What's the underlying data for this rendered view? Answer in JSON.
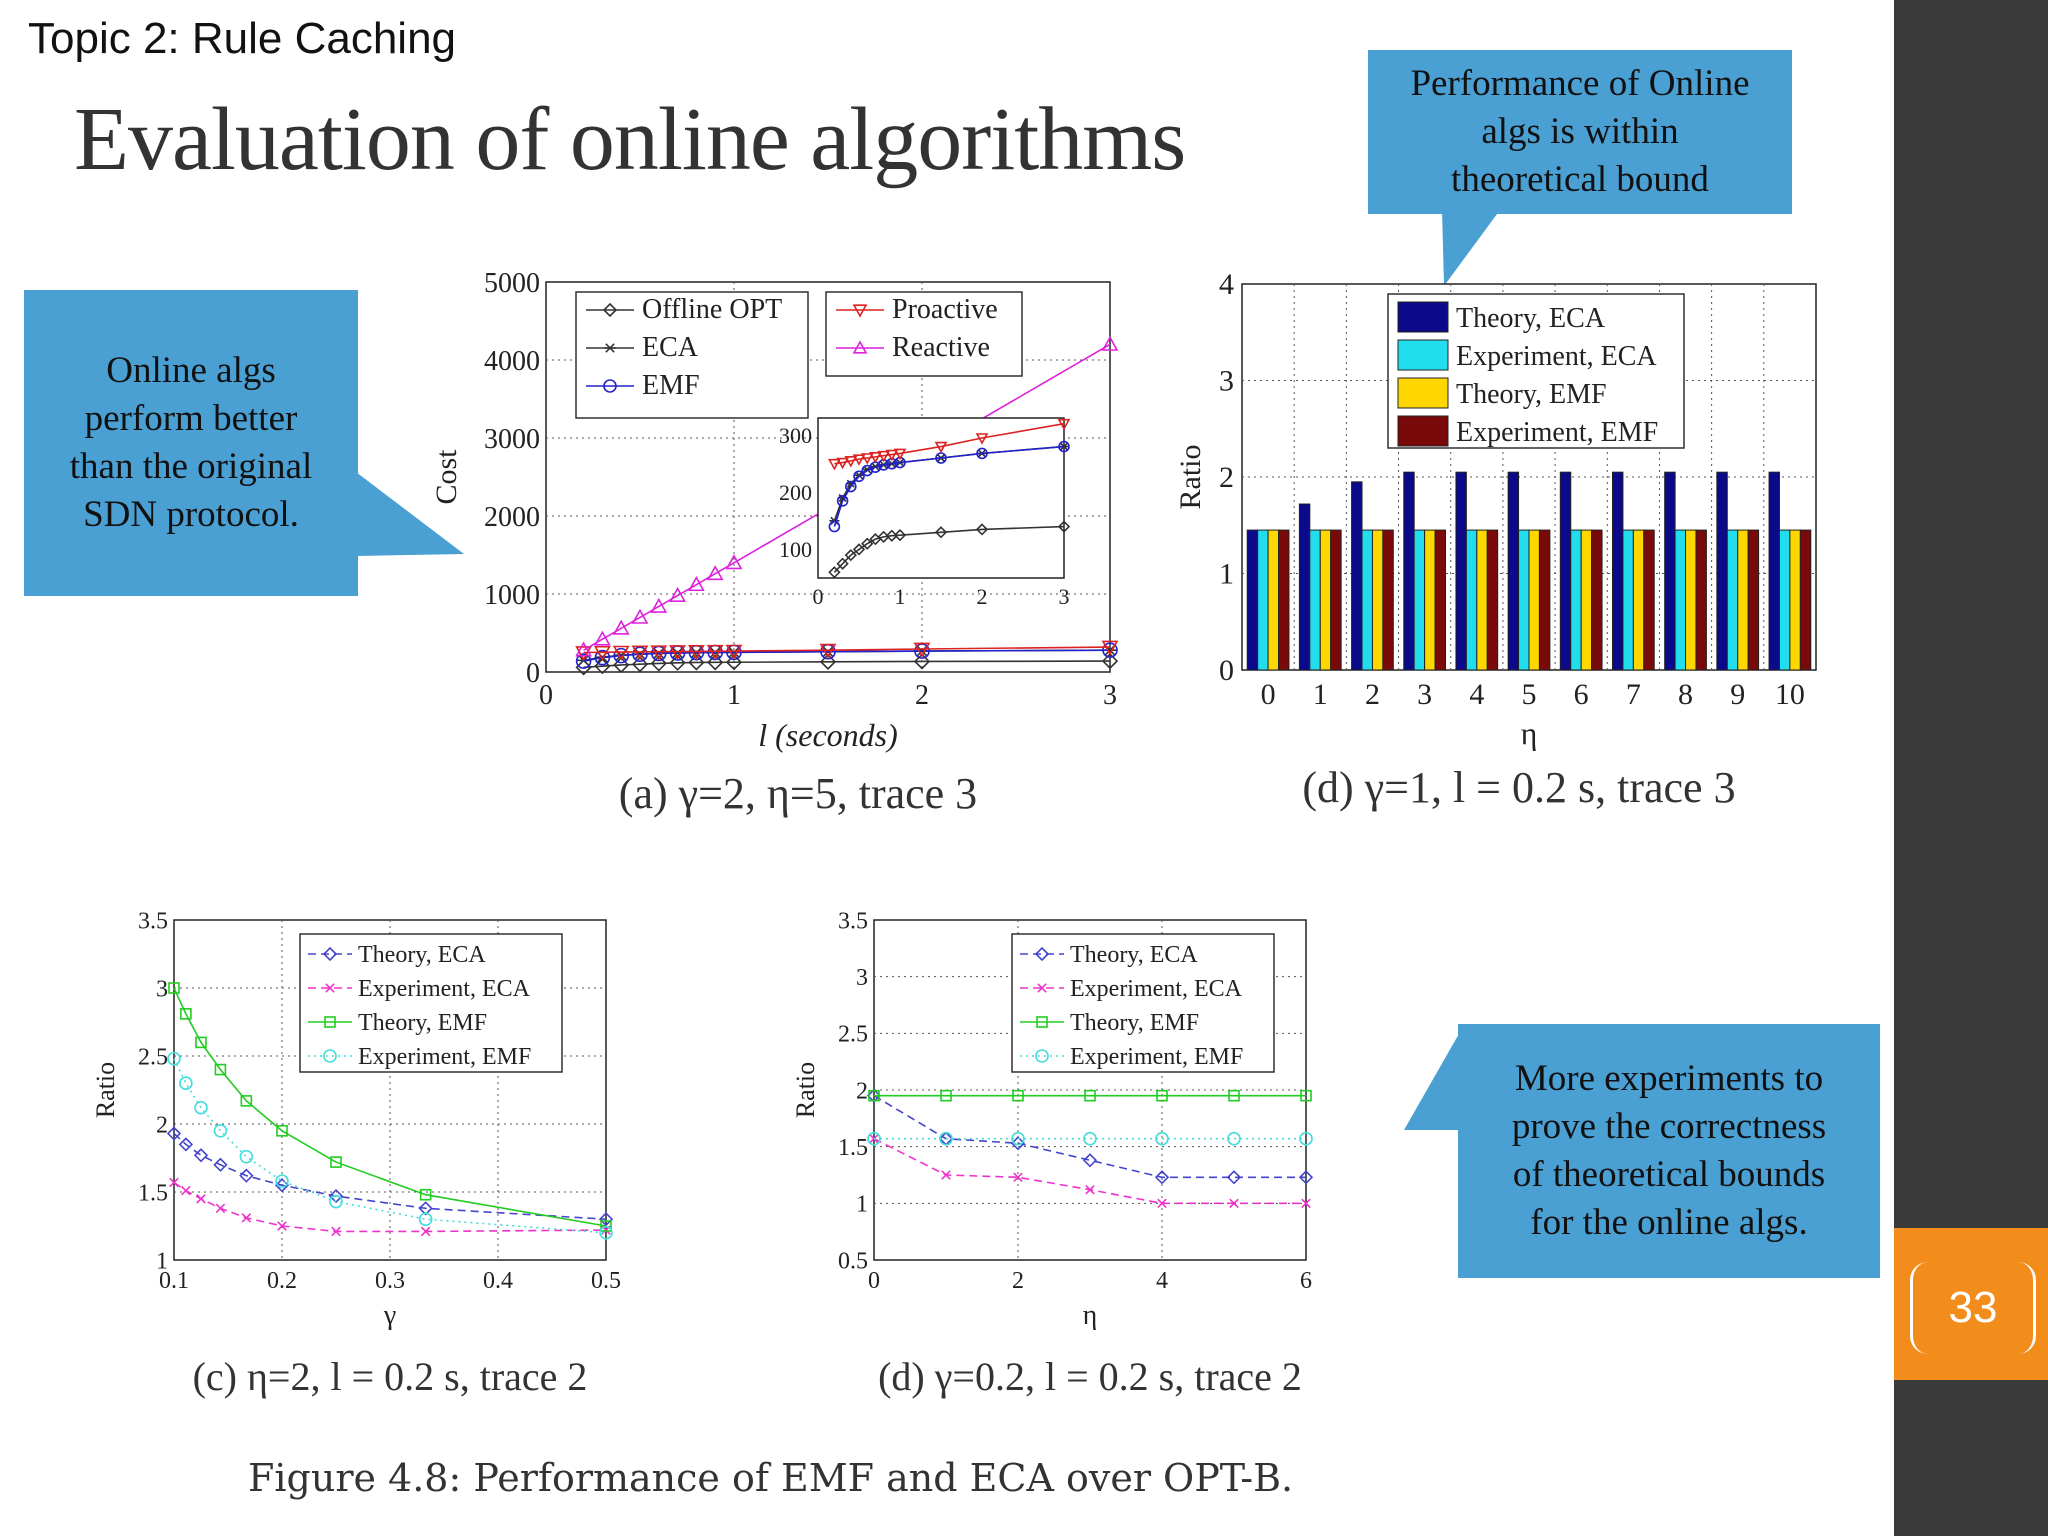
{
  "slide": {
    "topic": "Topic 2: Rule Caching",
    "title": "Evaluation of online algorithms",
    "page_number": "33",
    "figure_caption": "Figure 4.8: Performance of EMF and ECA over OPT-B.",
    "colors": {
      "callout": "#4a9fd3",
      "sidebar": "#3a3a3a",
      "page_badge": "#f28c1b"
    }
  },
  "callouts": [
    {
      "text_lines": [
        "Performance of Online",
        "algs is within",
        "theoretical bound"
      ]
    },
    {
      "text_lines": [
        "Online algs",
        "perform better",
        "than the original",
        "SDN protocol."
      ]
    },
    {
      "text_lines": [
        "More experiments to",
        "prove the correctness",
        "of theoretical bounds",
        "for the online algs."
      ]
    }
  ],
  "chart_data": [
    {
      "id": "a",
      "type": "line",
      "caption": "(a) γ=2, η=5, trace 3",
      "xlabel": "l (seconds)",
      "ylabel": "Cost",
      "xlim": [
        0,
        3
      ],
      "ylim": [
        0,
        5000
      ],
      "xticks": [
        "0",
        "1",
        "2",
        "3"
      ],
      "yticks": [
        "0",
        "1000",
        "2000",
        "3000",
        "4000",
        "5000"
      ],
      "legend": [
        "Offline OPT",
        "ECA",
        "EMF",
        "Proactive",
        "Reactive"
      ],
      "series": [
        {
          "name": "Offline OPT",
          "color": "#333333",
          "marker": "diamond",
          "x": [
            0.2,
            0.3,
            0.4,
            0.5,
            0.6,
            0.7,
            0.8,
            0.9,
            1.0,
            1.5,
            2.0,
            3.0
          ],
          "y": [
            60,
            75,
            90,
            100,
            110,
            118,
            122,
            124,
            125,
            130,
            135,
            140
          ]
        },
        {
          "name": "ECA",
          "color": "#333333",
          "marker": "star",
          "x": [
            0.2,
            0.3,
            0.4,
            0.5,
            0.6,
            0.7,
            0.8,
            0.9,
            1.0,
            1.5,
            2.0,
            3.0
          ],
          "y": [
            150,
            190,
            215,
            230,
            240,
            245,
            248,
            250,
            252,
            260,
            268,
            280
          ]
        },
        {
          "name": "EMF",
          "color": "#2222cc",
          "marker": "circle",
          "x": [
            0.2,
            0.3,
            0.4,
            0.5,
            0.6,
            0.7,
            0.8,
            0.9,
            1.0,
            1.5,
            2.0,
            3.0
          ],
          "y": [
            140,
            185,
            210,
            228,
            238,
            244,
            248,
            250,
            252,
            260,
            268,
            280
          ]
        },
        {
          "name": "Proactive",
          "color": "#dd2222",
          "marker": "triangle-down",
          "x": [
            0.2,
            0.3,
            0.4,
            0.5,
            0.6,
            0.7,
            0.8,
            0.9,
            1.0,
            1.5,
            2.0,
            3.0
          ],
          "y": [
            250,
            252,
            255,
            258,
            260,
            262,
            264,
            266,
            268,
            280,
            295,
            320
          ]
        },
        {
          "name": "Reactive",
          "color": "#dd22dd",
          "marker": "triangle-up",
          "x": [
            0.2,
            0.3,
            0.4,
            0.5,
            0.6,
            0.7,
            0.8,
            0.9,
            1.0
          ],
          "y": [
            280,
            420,
            560,
            700,
            840,
            980,
            1120,
            1260,
            1400
          ],
          "x_end": 3.0,
          "y_end": 4200
        }
      ],
      "inset": {
        "xlim": [
          0,
          3
        ],
        "ylim": [
          50,
          330
        ],
        "xticks": [
          "0",
          "1",
          "2",
          "3"
        ],
        "yticks": [
          "100",
          "200",
          "300"
        ]
      }
    },
    {
      "id": "d-top",
      "type": "bar",
      "caption": "(d) γ=1, l = 0.2 s, trace 3",
      "xlabel": "η",
      "ylabel": "Ratio",
      "ylim": [
        0,
        4
      ],
      "categories": [
        "0",
        "1",
        "2",
        "3",
        "4",
        "5",
        "6",
        "7",
        "8",
        "9",
        "10"
      ],
      "yticks": [
        "0",
        "1",
        "2",
        "3",
        "4"
      ],
      "series": [
        {
          "name": "Theory, ECA",
          "color": "#0a0a8a",
          "values": [
            1.45,
            1.72,
            1.95,
            2.05,
            2.05,
            2.05,
            2.05,
            2.05,
            2.05,
            2.05,
            2.05
          ]
        },
        {
          "name": "Experiment, ECA",
          "color": "#22ddee",
          "values": [
            1.45,
            1.45,
            1.45,
            1.45,
            1.45,
            1.45,
            1.45,
            1.45,
            1.45,
            1.45,
            1.45
          ]
        },
        {
          "name": "Theory, EMF",
          "color": "#ffd700",
          "values": [
            1.45,
            1.45,
            1.45,
            1.45,
            1.45,
            1.45,
            1.45,
            1.45,
            1.45,
            1.45,
            1.45
          ]
        },
        {
          "name": "Experiment, EMF",
          "color": "#7a0a0a",
          "values": [
            1.45,
            1.45,
            1.45,
            1.45,
            1.45,
            1.45,
            1.45,
            1.45,
            1.45,
            1.45,
            1.45
          ]
        }
      ]
    },
    {
      "id": "c",
      "type": "line",
      "caption": "(c) η=2, l = 0.2 s, trace 2",
      "xlabel": "γ",
      "ylabel": "Ratio",
      "xlim": [
        0.1,
        0.5
      ],
      "ylim": [
        1,
        3.5
      ],
      "xticks": [
        "0.1",
        "0.2",
        "0.3",
        "0.4",
        "0.5"
      ],
      "yticks": [
        "1",
        "1.5",
        "2",
        "2.5",
        "3",
        "3.5"
      ],
      "series": [
        {
          "name": "Theory, ECA",
          "color": "#4444cc",
          "marker": "diamond",
          "x": [
            0.1,
            0.111,
            0.125,
            0.143,
            0.167,
            0.2,
            0.25,
            0.333,
            0.5
          ],
          "y": [
            1.93,
            1.85,
            1.77,
            1.7,
            1.62,
            1.55,
            1.47,
            1.38,
            1.3
          ]
        },
        {
          "name": "Experiment, ECA",
          "color": "#ee33cc",
          "marker": "x",
          "x": [
            0.1,
            0.111,
            0.125,
            0.143,
            0.167,
            0.2,
            0.25,
            0.333,
            0.5
          ],
          "y": [
            1.57,
            1.51,
            1.45,
            1.38,
            1.31,
            1.25,
            1.21,
            1.21,
            1.22
          ]
        },
        {
          "name": "Theory, EMF",
          "color": "#22cc22",
          "marker": "square",
          "x": [
            0.1,
            0.111,
            0.125,
            0.143,
            0.167,
            0.2,
            0.25,
            0.333,
            0.5
          ],
          "y": [
            3.0,
            2.81,
            2.6,
            2.4,
            2.17,
            1.95,
            1.72,
            1.48,
            1.25
          ]
        },
        {
          "name": "Experiment, EMF",
          "color": "#44dddd",
          "marker": "circle",
          "x": [
            0.1,
            0.111,
            0.125,
            0.143,
            0.167,
            0.2,
            0.25,
            0.333,
            0.5
          ],
          "y": [
            2.48,
            2.3,
            2.12,
            1.95,
            1.76,
            1.58,
            1.43,
            1.3,
            1.2
          ]
        }
      ]
    },
    {
      "id": "d-bottom",
      "type": "line",
      "caption": "(d) γ=0.2, l = 0.2 s, trace 2",
      "xlabel": "η",
      "ylabel": "Ratio",
      "xlim": [
        0,
        6
      ],
      "ylim": [
        0.5,
        3.5
      ],
      "xticks": [
        "0",
        "2",
        "4",
        "6"
      ],
      "yticks": [
        "0.5",
        "1",
        "1.5",
        "2",
        "2.5",
        "3",
        "3.5"
      ],
      "series": [
        {
          "name": "Theory, ECA",
          "color": "#4444cc",
          "marker": "diamond",
          "x": [
            0,
            1,
            2,
            3,
            4,
            5,
            6
          ],
          "y": [
            1.95,
            1.57,
            1.53,
            1.38,
            1.23,
            1.23,
            1.23
          ]
        },
        {
          "name": "Experiment, ECA",
          "color": "#ee33cc",
          "marker": "x",
          "x": [
            0,
            1,
            2,
            3,
            4,
            5,
            6
          ],
          "y": [
            1.57,
            1.25,
            1.23,
            1.12,
            1.0,
            1.0,
            1.0
          ]
        },
        {
          "name": "Theory, EMF",
          "color": "#22cc22",
          "marker": "square",
          "x": [
            0,
            1,
            2,
            3,
            4,
            5,
            6
          ],
          "y": [
            1.95,
            1.95,
            1.95,
            1.95,
            1.95,
            1.95,
            1.95
          ]
        },
        {
          "name": "Experiment, EMF",
          "color": "#44dddd",
          "marker": "circle",
          "x": [
            0,
            1,
            2,
            3,
            4,
            5,
            6
          ],
          "y": [
            1.57,
            1.57,
            1.57,
            1.57,
            1.57,
            1.57,
            1.57
          ]
        }
      ]
    }
  ]
}
